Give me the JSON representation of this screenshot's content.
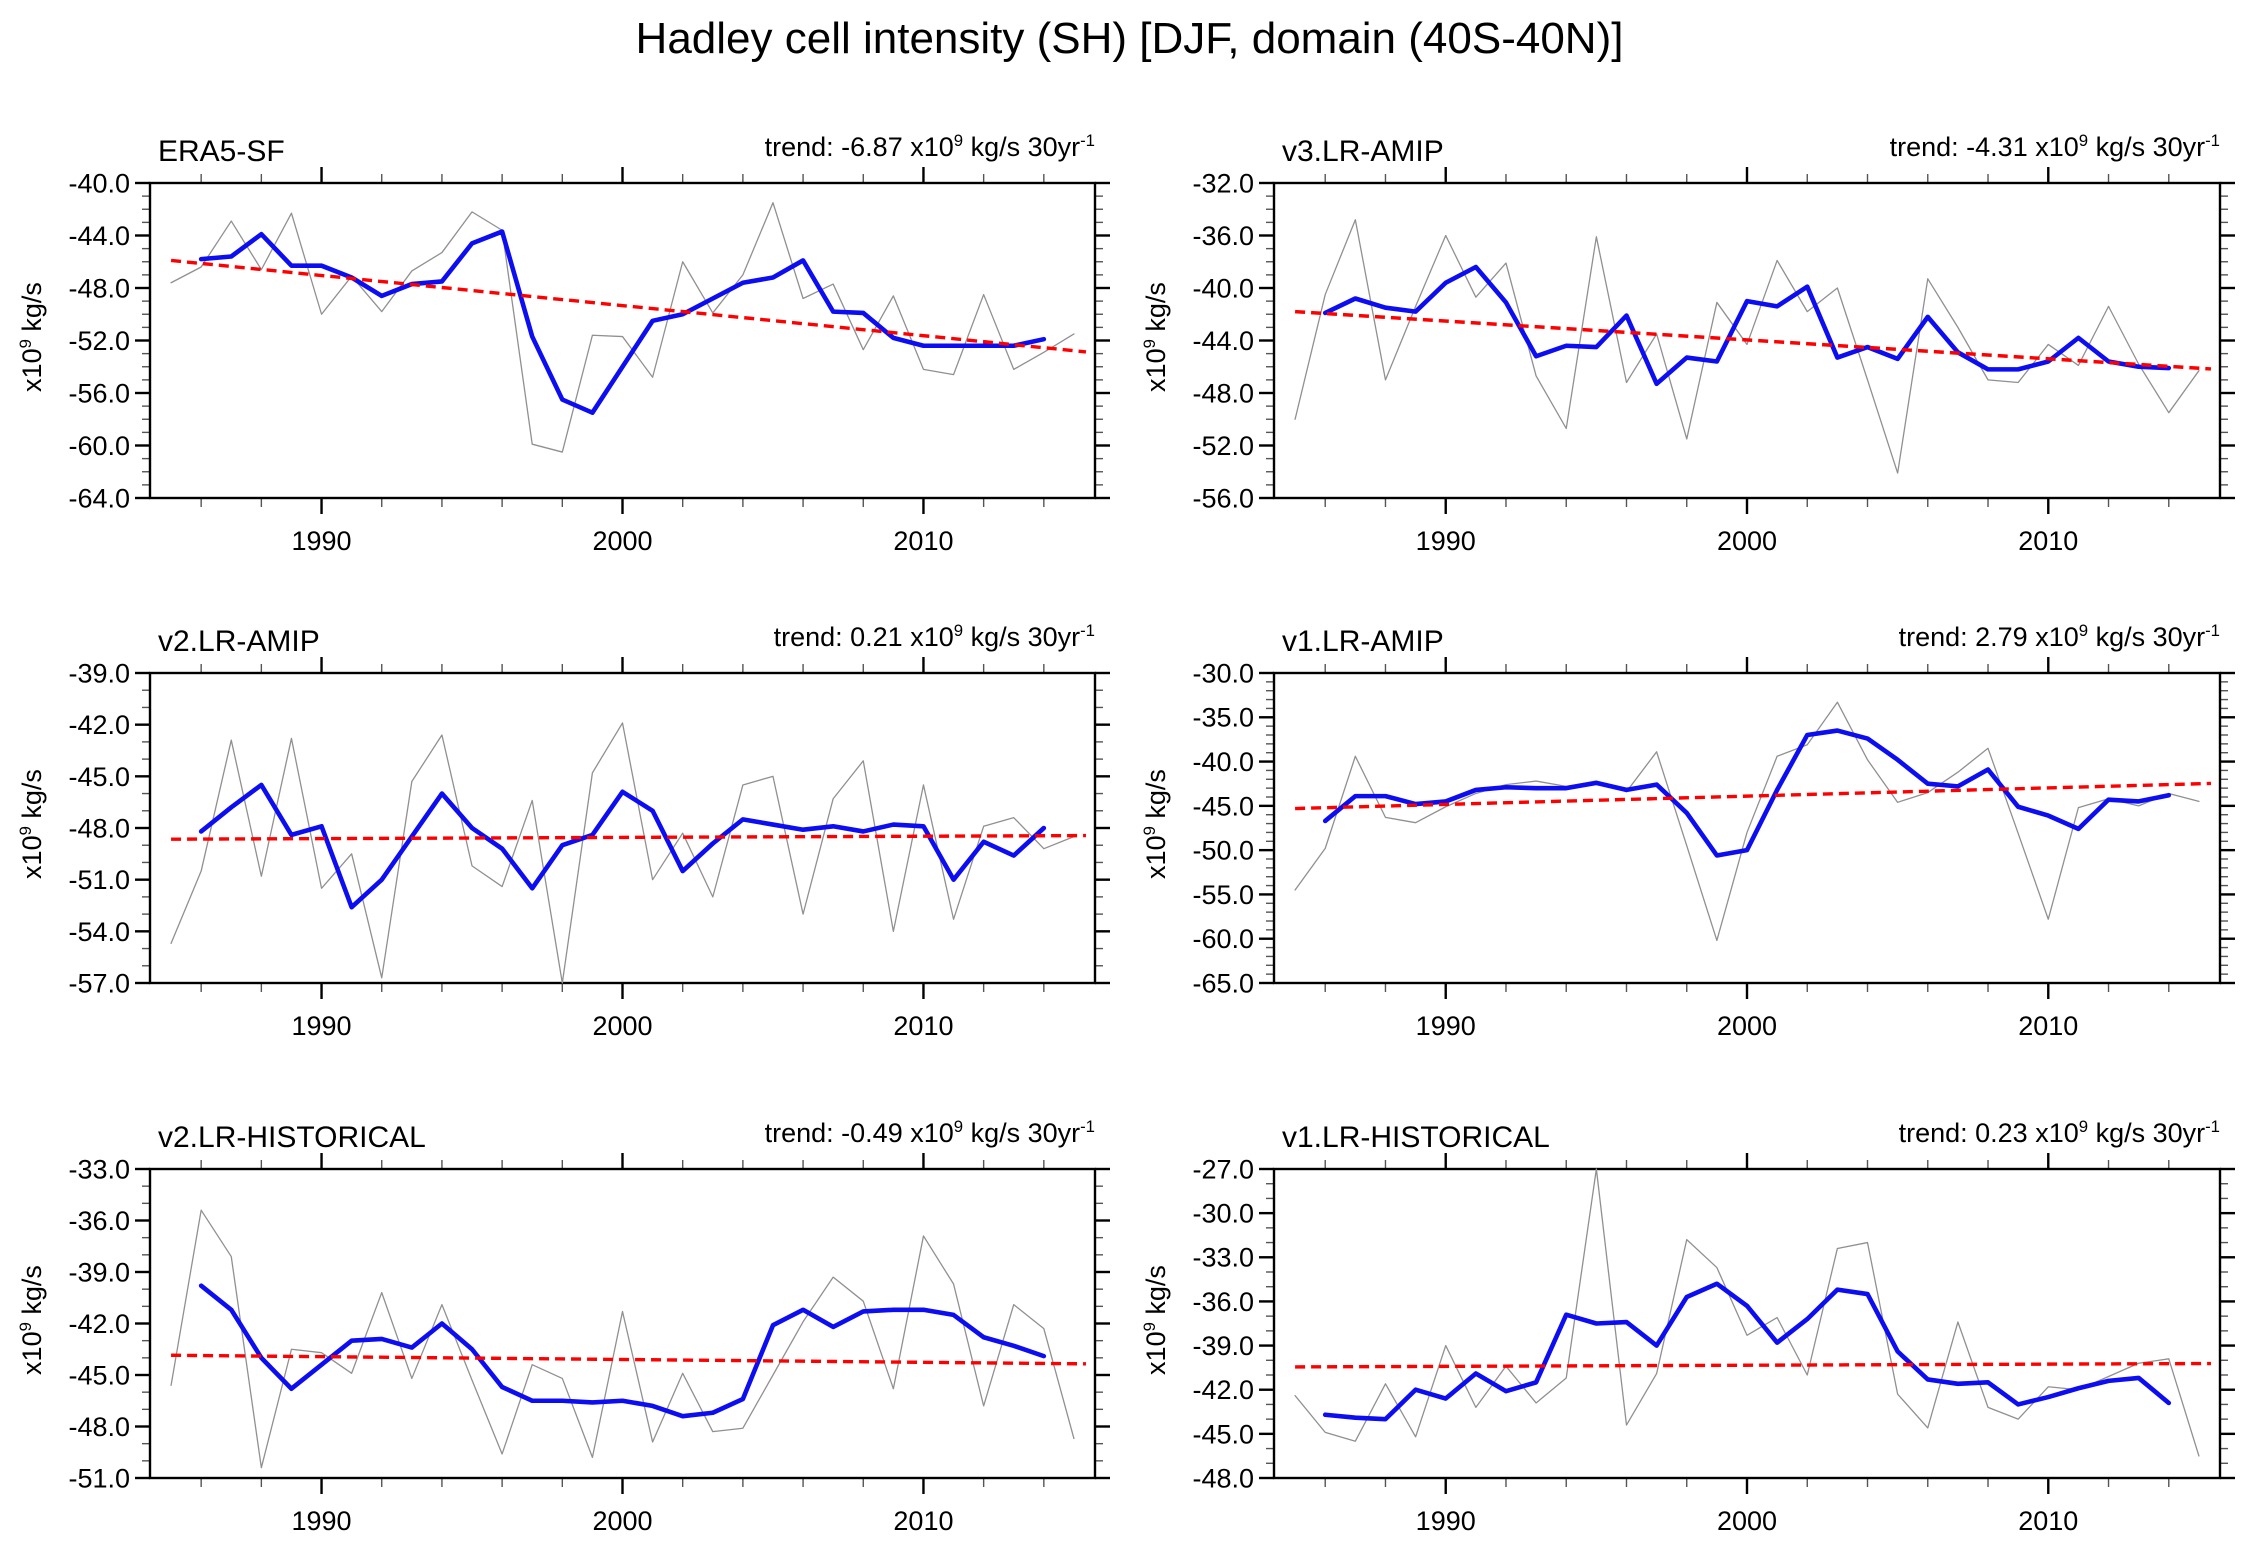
{
  "page_title": "Hadley cell intensity (SH) [DJF, domain (40S-40N)]",
  "axis": {
    "ylabel": {
      "prefix": "x10",
      "exp": "9",
      "suffix": " kg/s"
    },
    "x_major_ticks": [
      1990,
      2000,
      2010
    ],
    "x_minor_step": 2,
    "x_domain": [
      1984.3,
      2015.7
    ]
  },
  "trend_text": {
    "prefix": "trend: ",
    "x10": " x10",
    "exp": "9",
    "mid": " kg/s 30yr",
    "sup": "-1"
  },
  "colors": {
    "annual": "#909090",
    "smoothed": "#0d0df2",
    "trend": "#ff0000",
    "frame": "#000000"
  },
  "chart_data": [
    {
      "type": "line",
      "title": "ERA5-SF",
      "trend_value": "-6.87",
      "ylim": [
        -64,
        -40
      ],
      "y_major_step": 4,
      "y_minor_step": 1,
      "grid": false,
      "legend": "none",
      "series": [
        {
          "name": "annual",
          "start_year": 1985,
          "values": [
            -47.6,
            -46.4,
            -42.9,
            -46.6,
            -42.3,
            -50.0,
            -47.1,
            -49.8,
            -46.7,
            -45.3,
            -42.2,
            -43.6,
            -59.9,
            -60.5,
            -51.6,
            -51.7,
            -54.8,
            -46.0,
            -49.9,
            -47.0,
            -41.5,
            -48.8,
            -47.7,
            -52.7,
            -48.6,
            -54.2,
            -54.6,
            -48.5,
            -54.2,
            -52.9,
            -51.5
          ]
        },
        {
          "name": "smoothed",
          "start_year": 1986,
          "values": [
            -45.8,
            -45.6,
            -43.9,
            -46.3,
            -46.3,
            -47.2,
            -48.6,
            -47.7,
            -47.5,
            -44.6,
            -43.7,
            -51.7,
            -56.5,
            -57.5,
            -54.0,
            -50.5,
            -50.0,
            -48.8,
            -47.6,
            -47.2,
            -45.9,
            -49.8,
            -49.9,
            -51.8,
            -52.4,
            -52.4,
            -52.4,
            -52.4,
            -51.9
          ]
        },
        {
          "name": "linear-trend",
          "x": [
            1985,
            2015.4
          ],
          "y": [
            -45.9,
            -52.87
          ]
        }
      ]
    },
    {
      "type": "line",
      "title": "v3.LR-AMIP",
      "trend_value": "-4.31",
      "ylim": [
        -56,
        -32
      ],
      "y_major_step": 4,
      "y_minor_step": 1,
      "grid": false,
      "legend": "none",
      "series": [
        {
          "name": "annual",
          "start_year": 1985,
          "values": [
            -50.0,
            -40.5,
            -34.8,
            -47.0,
            -41.4,
            -36.0,
            -40.7,
            -38.1,
            -46.7,
            -50.7,
            -36.1,
            -47.2,
            -43.5,
            -51.5,
            -41.1,
            -44.3,
            -37.9,
            -41.8,
            -40.0,
            -47.0,
            -54.1,
            -39.3,
            -43.0,
            -47.0,
            -47.2,
            -44.3,
            -45.9,
            -41.4,
            -45.8,
            -49.5,
            -46.3
          ]
        },
        {
          "name": "smoothed",
          "start_year": 1986,
          "values": [
            -41.9,
            -40.8,
            -41.5,
            -41.8,
            -39.6,
            -38.4,
            -41.1,
            -45.2,
            -44.4,
            -44.5,
            -42.1,
            -47.3,
            -45.3,
            -45.6,
            -41.0,
            -41.4,
            -39.9,
            -45.3,
            -44.5,
            -45.4,
            -42.2,
            -44.9,
            -46.2,
            -46.2,
            -45.6,
            -43.8,
            -45.6,
            -46.0,
            -46.1
          ]
        },
        {
          "name": "linear-trend",
          "x": [
            1985,
            2015.4
          ],
          "y": [
            -41.8,
            -46.17
          ]
        }
      ]
    },
    {
      "type": "line",
      "title": "v2.LR-AMIP",
      "trend_value": "0.21",
      "ylim": [
        -57,
        -39
      ],
      "y_major_step": 3,
      "y_minor_step": 1,
      "grid": false,
      "legend": "none",
      "series": [
        {
          "name": "annual",
          "start_year": 1985,
          "values": [
            -54.7,
            -50.5,
            -42.9,
            -50.8,
            -42.8,
            -51.5,
            -49.5,
            -56.7,
            -45.3,
            -42.6,
            -50.2,
            -51.4,
            -46.4,
            -57.0,
            -44.8,
            -41.9,
            -51.0,
            -48.3,
            -52.0,
            -45.5,
            -45.0,
            -53.0,
            -46.3,
            -44.1,
            -54.0,
            -45.5,
            -53.3,
            -47.9,
            -47.4,
            -49.2,
            -48.5
          ]
        },
        {
          "name": "smoothed",
          "start_year": 1986,
          "values": [
            -48.2,
            -46.8,
            -45.5,
            -48.4,
            -47.9,
            -52.6,
            -51.0,
            -48.5,
            -46.0,
            -48.0,
            -49.2,
            -51.5,
            -49.0,
            -48.4,
            -45.9,
            -47.0,
            -50.5,
            -48.9,
            -47.5,
            -47.8,
            -48.1,
            -47.9,
            -48.2,
            -47.8,
            -47.9,
            -51.0,
            -48.8,
            -49.6,
            -48.0
          ]
        },
        {
          "name": "linear-trend",
          "x": [
            1985,
            2015.4
          ],
          "y": [
            -48.65,
            -48.44
          ]
        }
      ]
    },
    {
      "type": "line",
      "title": "v1.LR-AMIP",
      "trend_value": "2.79",
      "ylim": [
        -65,
        -30
      ],
      "y_major_step": 5,
      "y_minor_step": 1,
      "grid": false,
      "legend": "none",
      "series": [
        {
          "name": "annual",
          "start_year": 1985,
          "values": [
            -54.5,
            -49.8,
            -39.4,
            -46.3,
            -46.9,
            -45.1,
            -43.6,
            -42.6,
            -42.2,
            -42.8,
            -42.2,
            -43.4,
            -38.9,
            -49.5,
            -60.2,
            -48.0,
            -39.4,
            -38.1,
            -33.3,
            -39.8,
            -44.6,
            -43.5,
            -41.2,
            -38.5,
            -48.1,
            -57.8,
            -45.2,
            -44.2,
            -45.0,
            -43.6,
            -44.5
          ]
        },
        {
          "name": "smoothed",
          "start_year": 1986,
          "values": [
            -46.7,
            -43.9,
            -43.9,
            -44.8,
            -44.5,
            -43.2,
            -42.9,
            -43.0,
            -43.0,
            -42.4,
            -43.2,
            -42.6,
            -45.8,
            -50.6,
            -50.0,
            -43.2,
            -37.0,
            -36.5,
            -37.4,
            -39.8,
            -42.5,
            -42.8,
            -40.9,
            -45.1,
            -46.1,
            -47.6,
            -44.3,
            -44.5,
            -43.8
          ]
        },
        {
          "name": "linear-trend",
          "x": [
            1985,
            2015.4
          ],
          "y": [
            -45.3,
            -42.47
          ]
        }
      ]
    },
    {
      "type": "line",
      "title": "v2.LR-HISTORICAL",
      "trend_value": "-0.49",
      "ylim": [
        -51,
        -33
      ],
      "y_major_step": 3,
      "y_minor_step": 1,
      "grid": false,
      "legend": "none",
      "series": [
        {
          "name": "annual",
          "start_year": 1985,
          "values": [
            -45.6,
            -35.4,
            -38.1,
            -50.4,
            -43.5,
            -43.7,
            -44.9,
            -40.2,
            -45.2,
            -40.9,
            -45.3,
            -49.6,
            -44.4,
            -45.2,
            -49.8,
            -41.3,
            -48.9,
            -44.9,
            -48.3,
            -48.1,
            -45.0,
            -41.9,
            -39.3,
            -40.7,
            -45.8,
            -36.9,
            -39.7,
            -46.8,
            -40.9,
            -42.3,
            -48.7
          ]
        },
        {
          "name": "smoothed",
          "start_year": 1986,
          "values": [
            -39.8,
            -41.2,
            -44.0,
            -45.8,
            -44.4,
            -43.0,
            -42.9,
            -43.4,
            -42.0,
            -43.5,
            -45.7,
            -46.5,
            -46.5,
            -46.6,
            -46.5,
            -46.8,
            -47.4,
            -47.2,
            -46.4,
            -42.1,
            -41.2,
            -42.2,
            -41.3,
            -41.2,
            -41.2,
            -41.5,
            -42.8,
            -43.3,
            -43.9
          ]
        },
        {
          "name": "linear-trend",
          "x": [
            1985,
            2015.4
          ],
          "y": [
            -43.85,
            -44.35
          ]
        }
      ]
    },
    {
      "type": "line",
      "title": "v1.LR-HISTORICAL",
      "trend_value": "0.23",
      "ylim": [
        -48,
        -27
      ],
      "y_major_step": 3,
      "y_minor_step": 1,
      "grid": false,
      "legend": "none",
      "series": [
        {
          "name": "annual",
          "start_year": 1985,
          "values": [
            -42.4,
            -44.9,
            -45.5,
            -41.6,
            -45.2,
            -39.0,
            -43.2,
            -40.4,
            -42.9,
            -41.2,
            -27.0,
            -44.4,
            -40.9,
            -31.8,
            -33.7,
            -38.3,
            -37.1,
            -41.0,
            -32.4,
            -32.0,
            -42.3,
            -44.6,
            -37.4,
            -43.2,
            -44.0,
            -41.8,
            -42.0,
            -41.1,
            -40.2,
            -39.9,
            -46.5
          ]
        },
        {
          "name": "smoothed",
          "start_year": 1986,
          "values": [
            -43.7,
            -43.9,
            -44.0,
            -42.0,
            -42.6,
            -40.9,
            -42.1,
            -41.5,
            -36.9,
            -37.5,
            -37.4,
            -39.0,
            -35.7,
            -34.8,
            -36.3,
            -38.8,
            -37.2,
            -35.2,
            -35.5,
            -39.4,
            -41.3,
            -41.6,
            -41.5,
            -43.0,
            -42.5,
            -41.9,
            -41.4,
            -41.2,
            -42.9
          ]
        },
        {
          "name": "linear-trend",
          "x": [
            1985,
            2015.4
          ],
          "y": [
            -40.45,
            -40.22
          ]
        }
      ]
    }
  ]
}
